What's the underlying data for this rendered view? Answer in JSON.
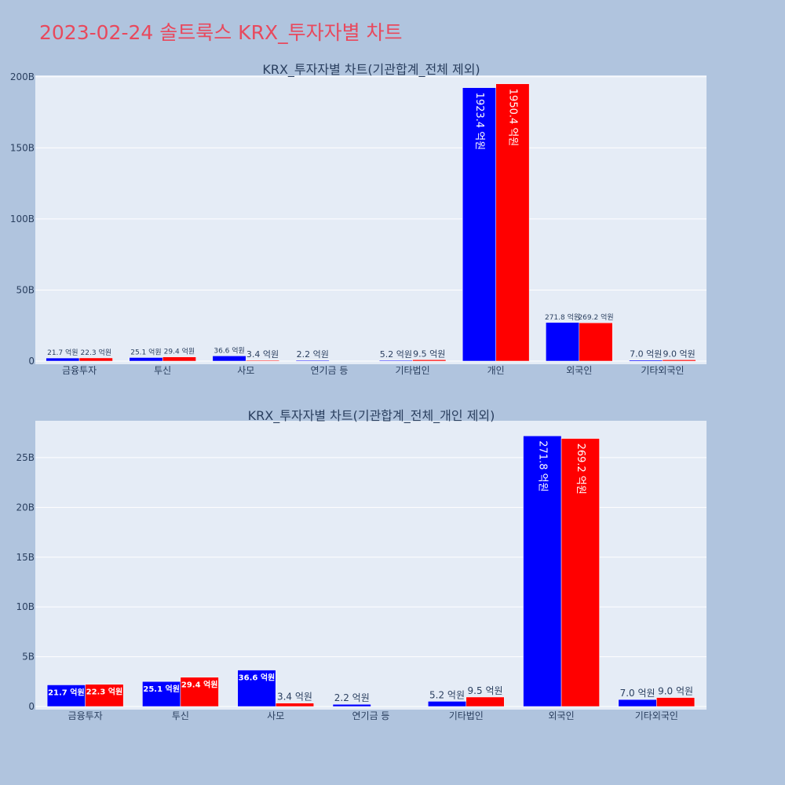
{
  "page": {
    "title": "2023-02-24 솔트룩스 KRX_투자자별 차트"
  },
  "colors": {
    "background": "#b0c4de",
    "plot_bg": "#e5ecf6",
    "title": "#e8495d",
    "text": "#2a3f5f",
    "buy": "#0000ff",
    "sell": "#ff0000"
  },
  "chart_data": [
    {
      "type": "bar",
      "title": "KRX_투자자별 차트(기관합계_전체 제외)",
      "categories": [
        "금융투자",
        "투신",
        "사모",
        "연기금 등",
        "기타법인",
        "개인",
        "외국인",
        "기타외국인"
      ],
      "series": [
        {
          "color": "#0000ff",
          "values": [
            2.17,
            2.51,
            3.66,
            0.22,
            0.52,
            192.34,
            27.18,
            0.7
          ],
          "labels": [
            "21.7 억원",
            "25.1 억원",
            "36.6 억원",
            "2.2 억원",
            "5.2 억원",
            "1923.4 억원",
            "271.8 억원",
            "7.0 억원"
          ]
        },
        {
          "color": "#ff0000",
          "values": [
            2.23,
            2.94,
            0.34,
            0,
            0.95,
            195.04,
            26.92,
            0.9
          ],
          "labels": [
            "22.3 억원",
            "29.4 억원",
            "3.4 억원",
            "",
            "9.5 억원",
            "1950.4 억원",
            "269.2 억원",
            "9.0 억원"
          ]
        }
      ],
      "yticks": [
        "0",
        "50B",
        "100B",
        "150B",
        "200B"
      ],
      "ylim": [
        0,
        201
      ],
      "grid": true
    },
    {
      "type": "bar",
      "title": "KRX_투자자별 차트(기관합계_전체_개인 제외)",
      "categories": [
        "금융투자",
        "투신",
        "사모",
        "연기금 등",
        "기타법인",
        "외국인",
        "기타외국인"
      ],
      "series": [
        {
          "color": "#0000ff",
          "values": [
            2.17,
            2.51,
            3.66,
            0.22,
            0.52,
            27.18,
            0.7
          ],
          "labels": [
            "21.7 억원",
            "25.1 억원",
            "36.6 억원",
            "2.2 억원",
            "5.2 억원",
            "271.8 억원",
            "7.0 억원"
          ]
        },
        {
          "color": "#ff0000",
          "values": [
            2.23,
            2.94,
            0.34,
            0,
            0.95,
            26.92,
            0.9
          ],
          "labels": [
            "22.3 억원",
            "29.4 억원",
            "3.4 억원",
            "",
            "9.5 억원",
            "269.2 억원",
            "9.0 억원"
          ]
        }
      ],
      "yticks": [
        "0",
        "5B",
        "10B",
        "15B",
        "20B",
        "25B"
      ],
      "ylim": [
        0,
        28.7
      ],
      "grid": true
    }
  ]
}
